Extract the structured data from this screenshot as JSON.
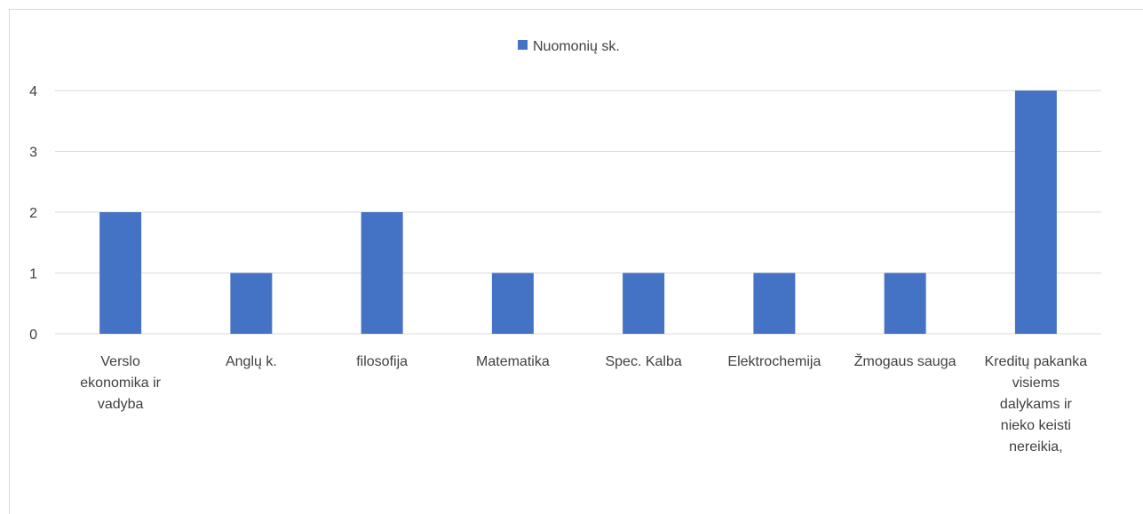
{
  "chart_data": {
    "type": "bar",
    "categories": [
      "Verslo ekonomika ir vadyba",
      "Anglų k.",
      "filosofija",
      "Matematika",
      "Spec. Kalba",
      "Elektrochemija",
      "Žmogaus sauga",
      "Kreditų pakanka visiems dalykams ir nieko keisti nereikia,"
    ],
    "series": [
      {
        "name": "Nuomonių sk.",
        "color": "#4472c4",
        "values": [
          2,
          1,
          2,
          1,
          1,
          1,
          1,
          4
        ]
      }
    ],
    "ylim": [
      0,
      4
    ],
    "yticks": [
      0,
      1,
      2,
      3,
      4
    ],
    "grid": true,
    "legend": "top"
  }
}
